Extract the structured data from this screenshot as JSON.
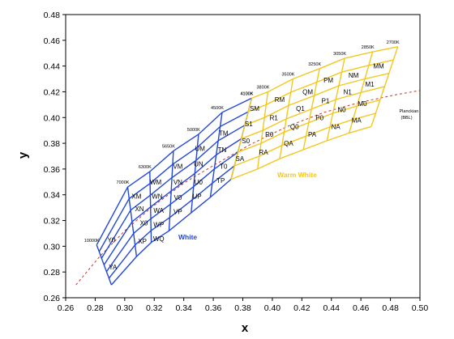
{
  "chart_data": {
    "type": "scatter",
    "xlabel": "x",
    "ylabel": "y",
    "xlim": [
      0.26,
      0.5
    ],
    "ylim": [
      0.26,
      0.48
    ],
    "x_ticks": [
      "0.26",
      "0.28",
      "0.30",
      "0.32",
      "0.34",
      "0.36",
      "0.38",
      "0.40",
      "0.42",
      "0.44",
      "0.46",
      "0.48",
      "0.50"
    ],
    "y_ticks": [
      "0.26",
      "0.28",
      "0.30",
      "0.32",
      "0.34",
      "0.36",
      "0.38",
      "0.40",
      "0.42",
      "0.44",
      "0.46",
      "0.48"
    ],
    "grid": false,
    "colors": {
      "white": "#2348d8",
      "warm_white": "#f2c81e",
      "planckian": "#c0392b"
    },
    "regions": [
      {
        "label": "White",
        "color": "#2348d8",
        "cct_top": [
          {
            "label": "10000K",
            "x": 0.281,
            "y": 0.301
          },
          {
            "label": "7000K",
            "x": 0.302,
            "y": 0.346
          },
          {
            "label": "6300K",
            "x": 0.317,
            "y": 0.358
          },
          {
            "label": "5650K",
            "x": 0.333,
            "y": 0.374
          },
          {
            "label": "5000K",
            "x": 0.35,
            "y": 0.387
          },
          {
            "label": "4500K",
            "x": 0.366,
            "y": 0.404
          },
          {
            "label": "4100K",
            "x": 0.386,
            "y": 0.415
          }
        ],
        "cct_bottom": [
          {
            "x": 0.291,
            "y": 0.27
          },
          {
            "x": 0.308,
            "y": 0.292
          },
          {
            "x": 0.318,
            "y": 0.303
          },
          {
            "x": 0.33,
            "y": 0.312
          },
          {
            "x": 0.345,
            "y": 0.326
          },
          {
            "x": 0.358,
            "y": 0.338
          },
          {
            "x": 0.372,
            "y": 0.352
          }
        ],
        "grid_size": {
          "isotherms": 7,
          "steps": 7
        },
        "cell_labels": [
          {
            "label": "YA",
            "x": 0.292,
            "y": 0.284
          },
          {
            "label": "Y0",
            "x": 0.291,
            "y": 0.305
          },
          {
            "label": "XP",
            "x": 0.312,
            "y": 0.304
          },
          {
            "label": "XN",
            "x": 0.31,
            "y": 0.329
          },
          {
            "label": "XM",
            "x": 0.308,
            "y": 0.339
          },
          {
            "label": "X0",
            "x": 0.313,
            "y": 0.318
          },
          {
            "label": "WQ",
            "x": 0.323,
            "y": 0.306
          },
          {
            "label": "WP",
            "x": 0.323,
            "y": 0.317
          },
          {
            "label": "WA",
            "x": 0.323,
            "y": 0.328
          },
          {
            "label": "WN",
            "x": 0.322,
            "y": 0.339
          },
          {
            "label": "WM",
            "x": 0.321,
            "y": 0.35
          },
          {
            "label": "VP",
            "x": 0.336,
            "y": 0.327
          },
          {
            "label": "V0",
            "x": 0.336,
            "y": 0.338
          },
          {
            "label": "VN",
            "x": 0.336,
            "y": 0.35
          },
          {
            "label": "VM",
            "x": 0.336,
            "y": 0.362
          },
          {
            "label": "UP",
            "x": 0.349,
            "y": 0.339
          },
          {
            "label": "U0",
            "x": 0.35,
            "y": 0.35
          },
          {
            "label": "UN",
            "x": 0.35,
            "y": 0.364
          },
          {
            "label": "UM",
            "x": 0.351,
            "y": 0.376
          },
          {
            "label": "TP",
            "x": 0.365,
            "y": 0.351
          },
          {
            "label": "T0",
            "x": 0.367,
            "y": 0.362
          },
          {
            "label": "TN",
            "x": 0.366,
            "y": 0.375
          },
          {
            "label": "TM",
            "x": 0.367,
            "y": 0.388
          }
        ]
      },
      {
        "label": "Warm White",
        "color": "#f2c81e",
        "cct_top": [
          {
            "label": "4100K",
            "x": 0.386,
            "y": 0.415
          },
          {
            "label": "3800K",
            "x": 0.397,
            "y": 0.42
          },
          {
            "label": "3500K",
            "x": 0.414,
            "y": 0.43
          },
          {
            "label": "3250K",
            "x": 0.432,
            "y": 0.438
          },
          {
            "label": "3050K",
            "x": 0.449,
            "y": 0.446
          },
          {
            "label": "2850K",
            "x": 0.468,
            "y": 0.451
          },
          {
            "label": "2700K",
            "x": 0.485,
            "y": 0.455
          }
        ],
        "cct_bottom": [
          {
            "x": 0.372,
            "y": 0.352
          },
          {
            "x": 0.39,
            "y": 0.36
          },
          {
            "x": 0.405,
            "y": 0.368
          },
          {
            "x": 0.421,
            "y": 0.375
          },
          {
            "x": 0.437,
            "y": 0.382
          },
          {
            "x": 0.452,
            "y": 0.388
          },
          {
            "x": 0.467,
            "y": 0.393
          }
        ],
        "grid_size": {
          "isotherms": 7,
          "steps": 7
        },
        "cell_labels": [
          {
            "label": "SM",
            "x": 0.388,
            "y": 0.407
          },
          {
            "label": "S1",
            "x": 0.384,
            "y": 0.395
          },
          {
            "label": "S0",
            "x": 0.382,
            "y": 0.382
          },
          {
            "label": "SA",
            "x": 0.378,
            "y": 0.368
          },
          {
            "label": "RM",
            "x": 0.405,
            "y": 0.414
          },
          {
            "label": "R1",
            "x": 0.401,
            "y": 0.4
          },
          {
            "label": "R0",
            "x": 0.398,
            "y": 0.387
          },
          {
            "label": "RA",
            "x": 0.394,
            "y": 0.373
          },
          {
            "label": "QM",
            "x": 0.424,
            "y": 0.42
          },
          {
            "label": "Q1",
            "x": 0.419,
            "y": 0.407
          },
          {
            "label": "Q0",
            "x": 0.415,
            "y": 0.393
          },
          {
            "label": "QA",
            "x": 0.411,
            "y": 0.38
          },
          {
            "label": "PM",
            "x": 0.438,
            "y": 0.429
          },
          {
            "label": "P1",
            "x": 0.436,
            "y": 0.413
          },
          {
            "label": "P0",
            "x": 0.432,
            "y": 0.4
          },
          {
            "label": "PA",
            "x": 0.427,
            "y": 0.387
          },
          {
            "label": "NM",
            "x": 0.455,
            "y": 0.433
          },
          {
            "label": "N1",
            "x": 0.451,
            "y": 0.42
          },
          {
            "label": "N0",
            "x": 0.447,
            "y": 0.406
          },
          {
            "label": "NA",
            "x": 0.443,
            "y": 0.393
          },
          {
            "label": "MM",
            "x": 0.472,
            "y": 0.44
          },
          {
            "label": "M1",
            "x": 0.466,
            "y": 0.426
          },
          {
            "label": "M0",
            "x": 0.461,
            "y": 0.411
          },
          {
            "label": "MA",
            "x": 0.457,
            "y": 0.398
          }
        ]
      }
    ],
    "planckian_locus": {
      "label_line1": "Planckian",
      "label_line2": "(BBL)",
      "label_at": {
        "x": 0.486,
        "y": 0.404
      },
      "points": [
        {
          "x": 0.267,
          "y": 0.27
        },
        {
          "x": 0.283,
          "y": 0.292
        },
        {
          "x": 0.3,
          "y": 0.312
        },
        {
          "x": 0.318,
          "y": 0.33
        },
        {
          "x": 0.34,
          "y": 0.349
        },
        {
          "x": 0.362,
          "y": 0.364
        },
        {
          "x": 0.385,
          "y": 0.379
        },
        {
          "x": 0.41,
          "y": 0.393
        },
        {
          "x": 0.435,
          "y": 0.404
        },
        {
          "x": 0.46,
          "y": 0.412
        },
        {
          "x": 0.485,
          "y": 0.418
        },
        {
          "x": 0.5,
          "y": 0.421
        }
      ]
    }
  }
}
